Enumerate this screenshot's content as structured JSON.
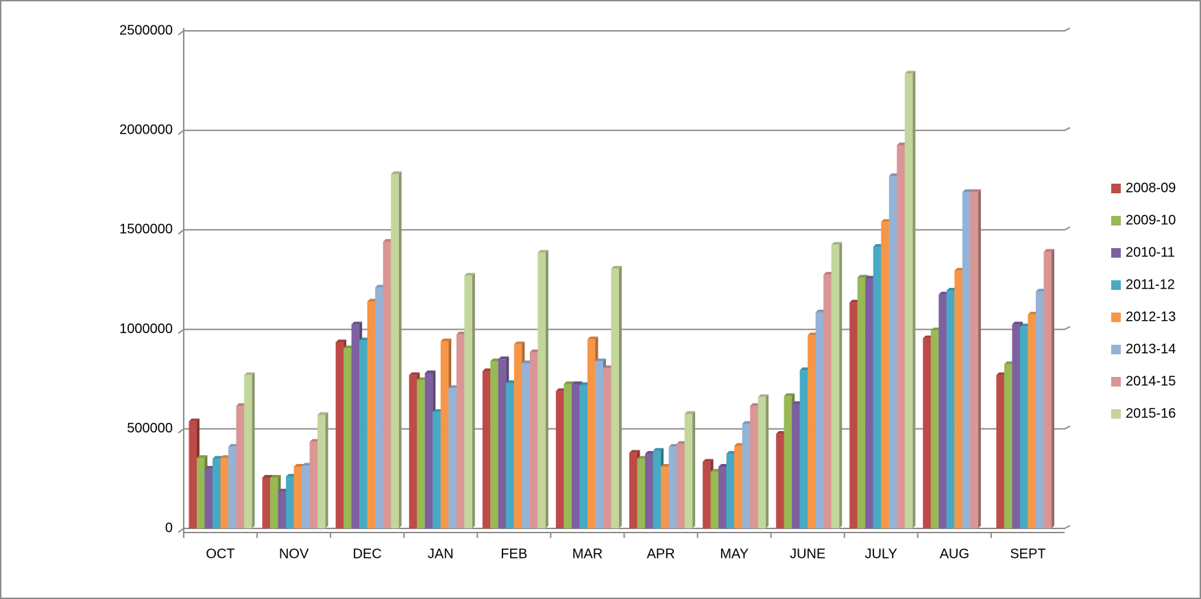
{
  "chart_data": {
    "type": "bar",
    "categories": [
      "OCT",
      "NOV",
      "DEC",
      "JAN",
      "FEB",
      "MAR",
      "APR",
      "MAY",
      "JUNE",
      "JULY",
      "AUG",
      "SEPT"
    ],
    "series": [
      {
        "name": "2008-09",
        "color": "#be4b48",
        "values": [
          538000,
          255000,
          935000,
          770000,
          790000,
          690000,
          380000,
          335000,
          475000,
          1135000,
          955000,
          770000
        ]
      },
      {
        "name": "2009-10",
        "color": "#98b954",
        "values": [
          354000,
          255000,
          905000,
          745000,
          840000,
          725000,
          350000,
          285000,
          665000,
          1260000,
          995000,
          825000
        ]
      },
      {
        "name": "2010-11",
        "color": "#7d60a0",
        "values": [
          300000,
          185000,
          1025000,
          780000,
          850000,
          725000,
          375000,
          310000,
          625000,
          1255000,
          1175000,
          1025000
        ]
      },
      {
        "name": "2011-12",
        "color": "#46aac4",
        "values": [
          350000,
          260000,
          945000,
          585000,
          730000,
          720000,
          390000,
          375000,
          795000,
          1415000,
          1195000,
          1015000
        ]
      },
      {
        "name": "2012-13",
        "color": "#f79646",
        "values": [
          354000,
          310000,
          1140000,
          940000,
          925000,
          950000,
          310000,
          415000,
          970000,
          1540000,
          1295000,
          1075000
        ]
      },
      {
        "name": "2013-14",
        "color": "#95b3d7",
        "values": [
          410000,
          315000,
          1210000,
          705000,
          830000,
          840000,
          410000,
          525000,
          1085000,
          1770000,
          1690000,
          1190000
        ]
      },
      {
        "name": "2014-15",
        "color": "#d99694",
        "values": [
          615000,
          435000,
          1440000,
          975000,
          885000,
          805000,
          425000,
          615000,
          1275000,
          1925000,
          1690000,
          1390000
        ]
      },
      {
        "name": "2015-16",
        "color": "#c3d69b",
        "values": [
          770000,
          570000,
          1780000,
          1270000,
          1385000,
          1305000,
          575000,
          660000,
          1425000,
          2285000,
          null,
          null
        ]
      }
    ],
    "ylim": [
      0,
      2500000
    ],
    "yticks": [
      0,
      500000,
      1000000,
      1500000,
      2000000,
      2500000
    ],
    "grid": true,
    "legend": "right"
  }
}
